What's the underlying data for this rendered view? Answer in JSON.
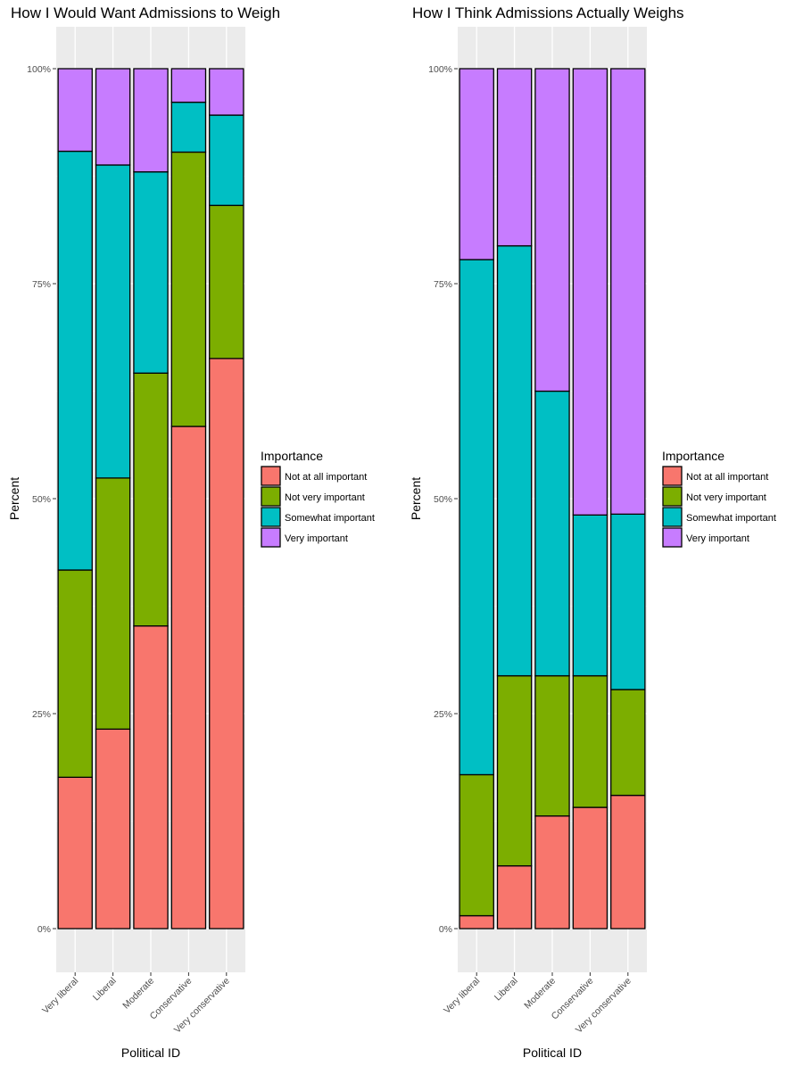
{
  "chart_data": [
    {
      "type": "bar",
      "stacked": true,
      "percent_stacked": true,
      "title": "How I Would Want Admissions to Weigh",
      "xlabel": "Political ID",
      "ylabel": "Percent",
      "categories": [
        "Very liberal",
        "Liberal",
        "Moderate",
        "Conservative",
        "Very conservative"
      ],
      "ylim": [
        0,
        1
      ],
      "yticks": [
        0,
        0.25,
        0.5,
        0.75,
        1.0
      ],
      "ytick_labels": [
        "0%",
        "25%",
        "50%",
        "75%",
        "100%"
      ],
      "legend_title": "Importance",
      "legend_position": "right",
      "grid": true,
      "series": [
        {
          "name": "Not at all important",
          "color": "#F8766D",
          "values": [
            0.176,
            0.232,
            0.352,
            0.584,
            0.663
          ]
        },
        {
          "name": "Not very important",
          "color": "#7CAE00",
          "values": [
            0.241,
            0.292,
            0.294,
            0.319,
            0.178
          ]
        },
        {
          "name": "Somewhat important",
          "color": "#00BFC4",
          "values": [
            0.487,
            0.364,
            0.234,
            0.058,
            0.105
          ]
        },
        {
          "name": "Very important",
          "color": "#C77CFF",
          "values": [
            0.096,
            0.112,
            0.12,
            0.039,
            0.054
          ]
        }
      ]
    },
    {
      "type": "bar",
      "stacked": true,
      "percent_stacked": true,
      "title": "How I Think Admissions Actually Weighs",
      "xlabel": "Political ID",
      "ylabel": "Percent",
      "categories": [
        "Very liberal",
        "Liberal",
        "Moderate",
        "Conservative",
        "Very conservative"
      ],
      "ylim": [
        0,
        1
      ],
      "yticks": [
        0,
        0.25,
        0.5,
        0.75,
        1.0
      ],
      "ytick_labels": [
        "0%",
        "25%",
        "50%",
        "75%",
        "100%"
      ],
      "legend_title": "Importance",
      "legend_position": "right",
      "grid": true,
      "series": [
        {
          "name": "Not at all important",
          "color": "#F8766D",
          "values": [
            0.015,
            0.073,
            0.131,
            0.141,
            0.155
          ]
        },
        {
          "name": "Not very important",
          "color": "#7CAE00",
          "values": [
            0.164,
            0.221,
            0.163,
            0.153,
            0.123
          ]
        },
        {
          "name": "Somewhat important",
          "color": "#00BFC4",
          "values": [
            0.599,
            0.5,
            0.331,
            0.187,
            0.204
          ]
        },
        {
          "name": "Very important",
          "color": "#C77CFF",
          "values": [
            0.222,
            0.206,
            0.375,
            0.519,
            0.518
          ]
        }
      ]
    }
  ]
}
